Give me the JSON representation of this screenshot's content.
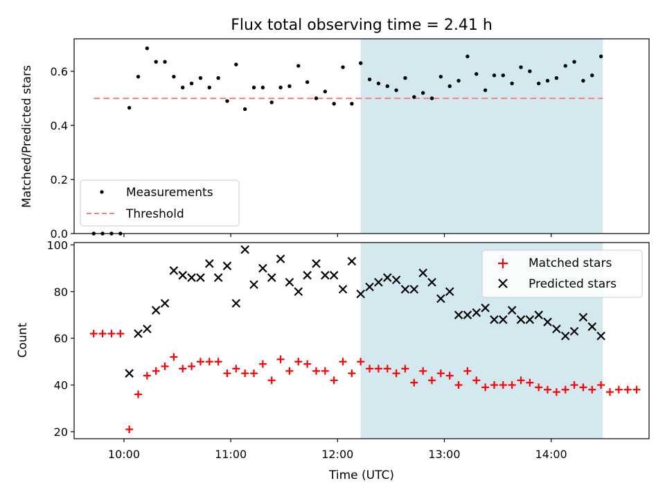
{
  "title": "Flux total observing time = 2.41 h",
  "colors": {
    "measurement": "#000000",
    "threshold": "#ff7f7f",
    "matched": "#ff0000",
    "predicted": "#000000",
    "highlight": "#d3e8ef"
  },
  "chart_data": [
    {
      "type": "scatter",
      "ylabel": "Matched/Predicted stars",
      "ylim": [
        0,
        0.72
      ],
      "yticks": [
        0.0,
        0.2,
        0.4,
        0.6
      ],
      "ytick_labels": [
        "0.0",
        "0.2",
        "0.4",
        "0.6"
      ],
      "legend": {
        "placement": "lower-left",
        "entries": [
          "Measurements",
          "Threshold"
        ]
      },
      "threshold": 0.5,
      "threshold_x_range": [
        583,
        869
      ],
      "highlight_x_range": [
        733,
        869
      ],
      "series": [
        {
          "name": "Measurements",
          "marker": "dot",
          "x": [
            583,
            588,
            593,
            598,
            603,
            608,
            613,
            618,
            623,
            628,
            633,
            638,
            643,
            648,
            653,
            658,
            663,
            668,
            673,
            678,
            683,
            688,
            693,
            698,
            703,
            708,
            713,
            718,
            723,
            728,
            733,
            738,
            743,
            748,
            753,
            758,
            763,
            768,
            773,
            778,
            783,
            788,
            793,
            798,
            803,
            808,
            813,
            818,
            823,
            828,
            833,
            838,
            843,
            848,
            853,
            858,
            863,
            868
          ],
          "y": [
            0.0,
            0.0,
            0.0,
            0.0,
            0.465,
            0.58,
            0.685,
            0.635,
            0.635,
            0.58,
            0.54,
            0.555,
            0.575,
            0.54,
            0.575,
            0.49,
            0.625,
            0.46,
            0.54,
            0.54,
            0.485,
            0.54,
            0.545,
            0.62,
            0.56,
            0.5,
            0.525,
            0.48,
            0.615,
            0.48,
            0.63,
            0.57,
            0.555,
            0.545,
            0.53,
            0.575,
            0.505,
            0.52,
            0.5,
            0.58,
            0.545,
            0.565,
            0.655,
            0.59,
            0.53,
            0.585,
            0.585,
            0.555,
            0.615,
            0.6,
            0.555,
            0.565,
            0.575,
            0.62,
            0.635,
            0.565,
            0.585,
            0.655
          ]
        }
      ]
    },
    {
      "type": "scatter",
      "ylabel": "Count",
      "xlabel": "Time (UTC)",
      "ylim": [
        17,
        101
      ],
      "xlim": [
        572,
        895
      ],
      "yticks": [
        20,
        40,
        60,
        80,
        100
      ],
      "ytick_labels": [
        "20",
        "40",
        "60",
        "80",
        "100"
      ],
      "xticks": [
        600,
        660,
        720,
        780,
        840
      ],
      "xtick_labels": [
        "10:00",
        "11:00",
        "12:00",
        "13:00",
        "14:00"
      ],
      "legend": {
        "placement": "upper-right",
        "entries": [
          "Matched stars",
          "Predicted stars"
        ]
      },
      "highlight_x_range": [
        733,
        869
      ],
      "series": [
        {
          "name": "Matched stars",
          "marker": "plus",
          "x": [
            583,
            588,
            593,
            598,
            603,
            608,
            613,
            618,
            623,
            628,
            633,
            638,
            643,
            648,
            653,
            658,
            663,
            668,
            673,
            678,
            683,
            688,
            693,
            698,
            703,
            708,
            713,
            718,
            723,
            728,
            733,
            738,
            743,
            748,
            753,
            758,
            763,
            768,
            773,
            778,
            783,
            788,
            793,
            798,
            803,
            808,
            813,
            818,
            823,
            828,
            833,
            838,
            843,
            848,
            853,
            858,
            863,
            868,
            873,
            878,
            883,
            888
          ],
          "y": [
            62,
            62,
            62,
            62,
            21,
            36,
            44,
            46,
            48,
            52,
            47,
            48,
            50,
            50,
            50,
            45,
            47,
            45,
            45,
            49,
            42,
            51,
            46,
            50,
            49,
            46,
            46,
            42,
            50,
            45,
            50,
            47,
            47,
            47,
            45,
            47,
            41,
            46,
            42,
            45,
            44,
            40,
            46,
            42,
            39,
            40,
            40,
            40,
            42,
            41,
            39,
            38,
            37,
            38,
            40,
            39,
            38,
            40,
            37,
            38,
            38,
            38
          ]
        },
        {
          "name": "Predicted stars",
          "marker": "x",
          "x": [
            603,
            608,
            613,
            618,
            623,
            628,
            633,
            638,
            643,
            648,
            653,
            658,
            663,
            668,
            673,
            678,
            683,
            688,
            693,
            698,
            703,
            708,
            713,
            718,
            723,
            728,
            733,
            738,
            743,
            748,
            753,
            758,
            763,
            768,
            773,
            778,
            783,
            788,
            793,
            798,
            803,
            808,
            813,
            818,
            823,
            828,
            833,
            838,
            843,
            848,
            853,
            858,
            863,
            868
          ],
          "y": [
            45,
            62,
            64,
            72,
            75,
            89,
            87,
            86,
            86,
            92,
            86,
            91,
            75,
            98,
            83,
            90,
            86,
            94,
            84,
            80,
            87,
            92,
            87,
            87,
            81,
            93,
            79,
            82,
            84,
            86,
            85,
            81,
            81,
            88,
            84,
            77,
            80,
            70,
            70,
            71,
            73,
            68,
            68,
            72,
            68,
            68,
            70,
            67,
            64,
            61,
            63,
            69,
            65,
            61
          ]
        }
      ]
    }
  ]
}
